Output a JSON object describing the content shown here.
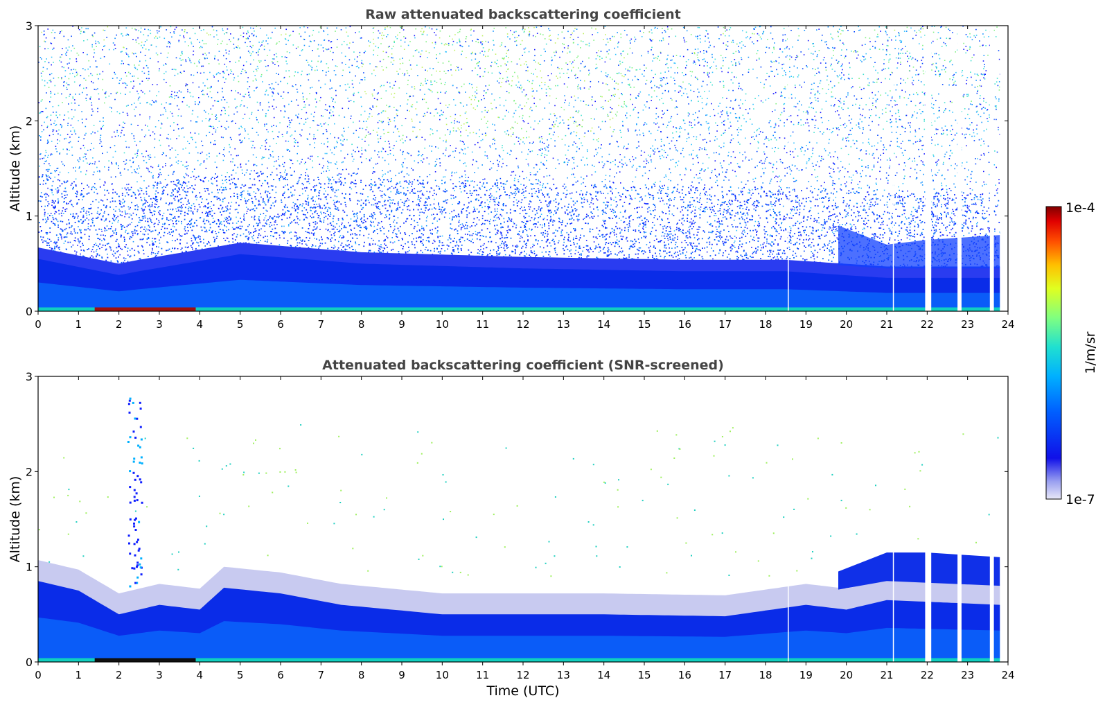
{
  "chart_data": [
    {
      "type": "heatmap",
      "title": "Raw attenuated backscattering coefficient",
      "xlabel": "",
      "ylabel": "Altitude (km)",
      "xlim": [
        0,
        24
      ],
      "ylim": [
        0,
        3
      ],
      "x_ticks": [
        "0",
        "1",
        "2",
        "3",
        "4",
        "5",
        "6",
        "7",
        "8",
        "9",
        "10",
        "11",
        "12",
        "13",
        "14",
        "15",
        "16",
        "17",
        "18",
        "19",
        "20",
        "21",
        "22",
        "23",
        "24"
      ],
      "y_ticks": [
        "0",
        "1",
        "2",
        "3"
      ],
      "features": {
        "boundary_layer_top_km": [
          [
            0,
            0.55
          ],
          [
            2,
            0.38
          ],
          [
            2.5,
            0.42
          ],
          [
            5,
            0.6
          ],
          [
            8,
            0.5
          ],
          [
            12,
            0.45
          ],
          [
            16,
            0.42
          ],
          [
            18.5,
            0.42
          ],
          [
            21,
            0.35
          ],
          [
            23.8,
            0.35
          ]
        ],
        "elevated_layer_km": [
          [
            19.8,
            0.9
          ],
          [
            21,
            0.7
          ],
          [
            22,
            0.75
          ],
          [
            23.8,
            0.8
          ]
        ],
        "data_gaps_utc": [
          [
            21.95,
            22.1
          ],
          [
            22.75,
            22.85
          ],
          [
            23.55,
            23.65
          ],
          [
            23.8,
            24.0
          ]
        ],
        "thin_gaps_utc": [
          18.55,
          21.15
        ]
      }
    },
    {
      "type": "heatmap",
      "title": "Attenuated backscattering coefficient (SNR-screened)",
      "xlabel": "Time (UTC)",
      "ylabel": "Altitude (km)",
      "xlim": [
        0,
        24
      ],
      "ylim": [
        0,
        3
      ],
      "x_ticks": [
        "0",
        "1",
        "2",
        "3",
        "4",
        "5",
        "6",
        "7",
        "8",
        "9",
        "10",
        "11",
        "12",
        "13",
        "14",
        "15",
        "16",
        "17",
        "18",
        "19",
        "20",
        "21",
        "22",
        "23",
        "24"
      ],
      "y_ticks": [
        "0",
        "1",
        "2",
        "3"
      ],
      "features": {
        "boundary_layer_top_km": [
          [
            0,
            0.85
          ],
          [
            1,
            0.75
          ],
          [
            2,
            0.5
          ],
          [
            3,
            0.6
          ],
          [
            4,
            0.55
          ],
          [
            4.6,
            0.78
          ],
          [
            6,
            0.72
          ],
          [
            7.5,
            0.6
          ],
          [
            10,
            0.5
          ],
          [
            14,
            0.5
          ],
          [
            17,
            0.48
          ],
          [
            19,
            0.6
          ],
          [
            20,
            0.55
          ],
          [
            21,
            0.65
          ],
          [
            23.8,
            0.6
          ]
        ],
        "elevated_layer_km": [
          [
            19.8,
            0.95
          ],
          [
            21,
            1.15
          ],
          [
            22,
            1.15
          ],
          [
            23.8,
            1.1
          ]
        ],
        "data_gaps_utc": [
          [
            21.95,
            22.1
          ],
          [
            22.75,
            22.85
          ],
          [
            23.55,
            23.65
          ],
          [
            23.8,
            24.0
          ]
        ],
        "thin_gaps_utc": [
          18.55,
          21.15
        ]
      }
    }
  ],
  "colorbar": {
    "max_label": "1e-4",
    "min_label": "1e-7",
    "unit_label": "1/m/sr",
    "colormap": "jet",
    "scale": "log"
  }
}
